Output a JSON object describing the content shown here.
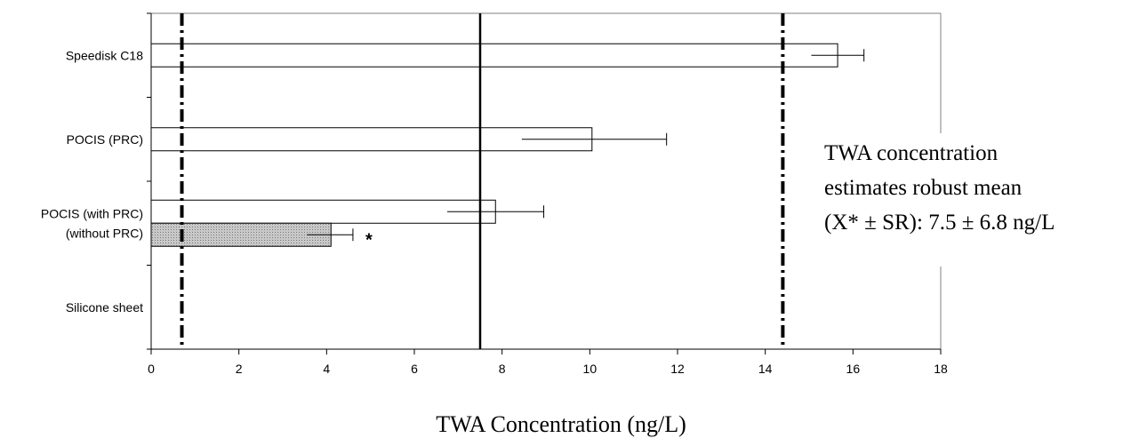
{
  "chart_data": {
    "type": "bar",
    "orientation": "horizontal",
    "categories": [
      [
        "Speedisk C18"
      ],
      [
        "POCIS (PRC)"
      ],
      [
        "POCIS (with PRC)",
        "(without PRC)"
      ],
      [
        "Silicone sheet"
      ]
    ],
    "bars": [
      {
        "category": 0,
        "value": 15.65,
        "err_low": 15.05,
        "err_high": 16.25,
        "fill": "#ffffff"
      },
      {
        "category": 1,
        "value": 10.05,
        "err_low": 8.45,
        "err_high": 11.75,
        "fill": "#ffffff"
      },
      {
        "category": 2,
        "value": 7.85,
        "err_low": 6.75,
        "err_high": 8.95,
        "fill": "#ffffff"
      },
      {
        "category": 2,
        "value": 4.1,
        "err_low": 3.55,
        "err_high": 4.6,
        "fill": "#c8c8c8",
        "hatched": true,
        "annotation": "*"
      }
    ],
    "reference_lines": [
      {
        "x": 7.5,
        "style": "solid"
      },
      {
        "x": 0.7,
        "style": "dash-dot"
      },
      {
        "x": 14.4,
        "style": "dash-dot"
      }
    ],
    "xlabel": "TWA Concentration (ng/L)",
    "ylabel": "",
    "xlim": [
      0,
      18
    ],
    "xticks": [
      "0",
      "2",
      "4",
      "6",
      "8",
      "10",
      "12",
      "14",
      "16",
      "18"
    ],
    "grid": false,
    "annotation_lines": [
      "TWA concentration",
      "estimates robust mean",
      "(X* ± SR): 7.5 ± 6.8 ng/L"
    ],
    "colors": {
      "axis": "#000000",
      "hatch_bar": "#c8c8c8",
      "plot_border": "#808080"
    }
  }
}
